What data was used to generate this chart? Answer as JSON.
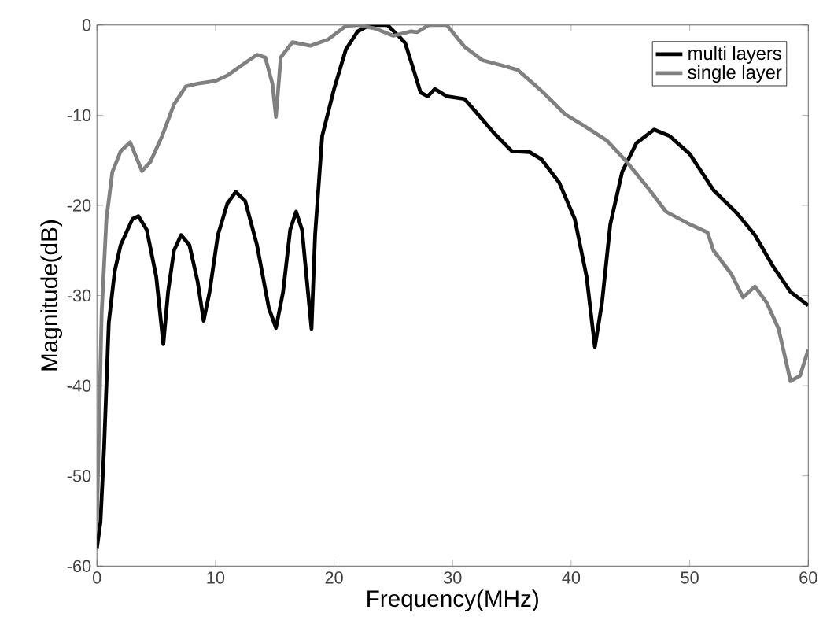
{
  "chart_data": {
    "type": "line",
    "xlabel": "Frequency(MHz)",
    "ylabel": "Magnitude(dB)",
    "xlim": [
      0,
      60
    ],
    "ylim": [
      -60,
      0
    ],
    "xticks": [
      0,
      10,
      20,
      30,
      40,
      50,
      60
    ],
    "yticks": [
      -60,
      -50,
      -40,
      -30,
      -20,
      -10,
      0
    ],
    "grid": false,
    "legend": "top right",
    "marker": "none",
    "line_style": "solid",
    "series": [
      {
        "name": "multi layers",
        "color": "#000000",
        "x": [
          0,
          0.3,
          0.6,
          1,
          1.5,
          2,
          3,
          3.5,
          4.2,
          5,
          5.6,
          6,
          6.5,
          7.1,
          7.8,
          8.5,
          9,
          9.5,
          10.2,
          11,
          11.7,
          12.5,
          13.5,
          14.5,
          15.1,
          15.7,
          16.3,
          16.8,
          17.3,
          17.8,
          18.1,
          18.4,
          19,
          20,
          21,
          22,
          23,
          24.5,
          25.5,
          26,
          26.6,
          27.3,
          27.9,
          28.5,
          29.5,
          31,
          32,
          33.5,
          35,
          36.5,
          37.5,
          39,
          40.3,
          41.3,
          42,
          42.6,
          43.3,
          44.3,
          45.5,
          47,
          48.3,
          50,
          52,
          54,
          55.5,
          57,
          58.5,
          60
        ],
        "values": [
          -58,
          -55.1,
          -47,
          -33,
          -27.3,
          -24.4,
          -21.5,
          -21.2,
          -22.7,
          -27.9,
          -35.4,
          -29.6,
          -25,
          -23.3,
          -24.4,
          -28.5,
          -32.8,
          -29.6,
          -23.3,
          -19.8,
          -18.5,
          -19.5,
          -24.4,
          -31.4,
          -33.6,
          -29.6,
          -22.7,
          -20.7,
          -22.7,
          -29.6,
          -33.7,
          -23.3,
          -12.3,
          -7.1,
          -2.7,
          -0.7,
          0,
          0,
          -1.3,
          -2,
          -4.5,
          -7.5,
          -7.9,
          -7.1,
          -7.9,
          -8.2,
          -9.7,
          -12,
          -14,
          -14.1,
          -14.9,
          -17.5,
          -21.5,
          -27.9,
          -35.7,
          -30.8,
          -22.1,
          -16.3,
          -13.1,
          -11.6,
          -12.3,
          -14.3,
          -18.3,
          -20.9,
          -23.3,
          -26.7,
          -29.6,
          -31.1
        ]
      },
      {
        "name": "single layer",
        "color": "#808080",
        "x": [
          0,
          0.4,
          0.8,
          1.3,
          2,
          2.8,
          3.3,
          3.8,
          4.5,
          5.5,
          6.5,
          7.5,
          8.5,
          10,
          11,
          12.5,
          13.5,
          14.2,
          14.8,
          15.1,
          15.5,
          16.5,
          18,
          19.5,
          21,
          22,
          23.5,
          25,
          26.5,
          27,
          28,
          29.5,
          31,
          32.5,
          34.5,
          35.5,
          37.5,
          39.5,
          41,
          43,
          44.7,
          46.5,
          48,
          50,
          51.5,
          52,
          53.5,
          54.5,
          55.5,
          56.5,
          57.5,
          58.5,
          59.3,
          60
        ],
        "values": [
          -55,
          -31.9,
          -21.5,
          -16.3,
          -14,
          -13,
          -14.6,
          -16.2,
          -15.2,
          -12.3,
          -8.8,
          -6.8,
          -6.5,
          -6.2,
          -5.6,
          -4.2,
          -3.3,
          -3.6,
          -6.5,
          -10.2,
          -3.6,
          -1.9,
          -2.3,
          -1.6,
          -0.1,
          0,
          -0.4,
          -1.2,
          -0.7,
          -0.8,
          0,
          0,
          -2.4,
          -3.9,
          -4.6,
          -5,
          -7.3,
          -9.9,
          -11.1,
          -12.8,
          -15.2,
          -18.1,
          -20.7,
          -22.1,
          -23,
          -25,
          -27.6,
          -30.2,
          -29,
          -30.8,
          -33.7,
          -39.5,
          -38.9,
          -36
        ]
      }
    ]
  }
}
